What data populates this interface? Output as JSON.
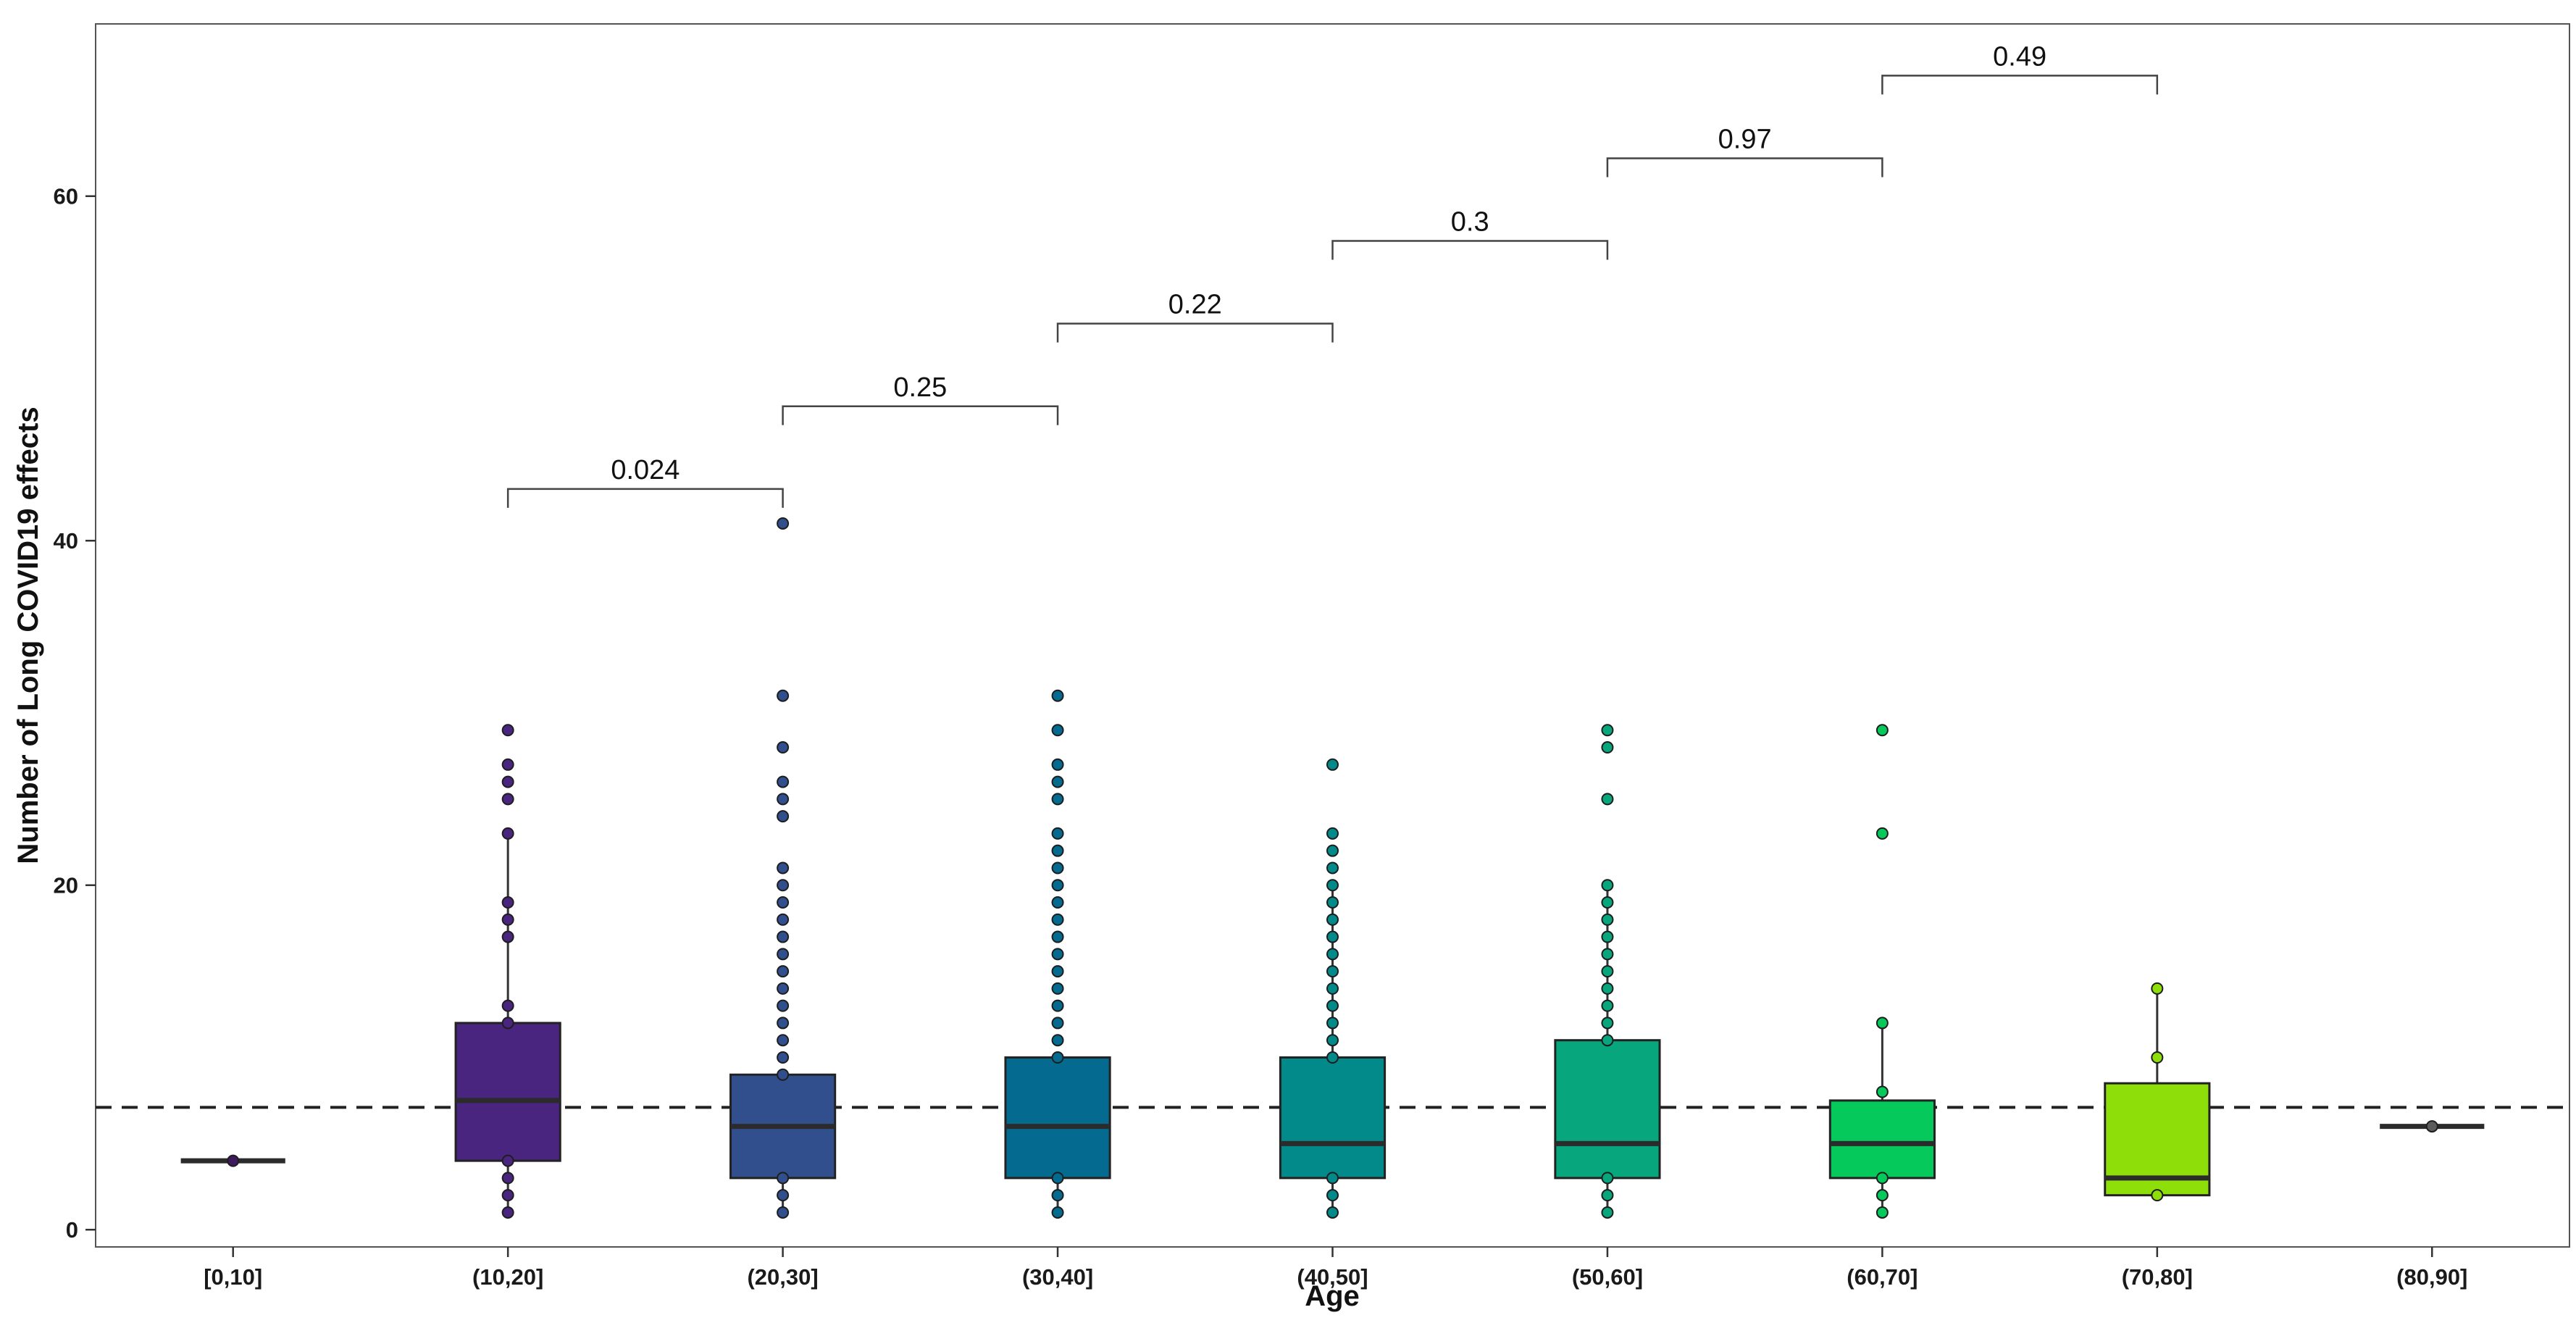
{
  "chart_data": {
    "type": "box",
    "xlabel": "Age",
    "ylabel": "Number of Long COVID19 effects",
    "ylim": [
      -1,
      70
    ],
    "yticks": [
      0,
      20,
      40,
      60
    ],
    "grid": false,
    "reference_line": {
      "y": 7.1,
      "style": "dashed"
    },
    "categories": [
      "[0,10]",
      "(10,20]",
      "(20,30]",
      "(30,40]",
      "(40,50]",
      "(50,60]",
      "(60,70]",
      "(70,80]",
      "(80,90]"
    ],
    "boxes": [
      {
        "category": "[0,10]",
        "color": "#3c1a5c",
        "q1": 4,
        "median": 4,
        "q3": 4,
        "whisker_low": 4,
        "whisker_high": 4,
        "points": [
          4
        ]
      },
      {
        "category": "(10,20]",
        "color": "#4a2580",
        "q1": 4,
        "median": 7.5,
        "q3": 12,
        "whisker_low": 1,
        "whisker_high": 23,
        "points": [
          1,
          2,
          3,
          4,
          12,
          13,
          17,
          18,
          19,
          23,
          25,
          26,
          27,
          29
        ]
      },
      {
        "category": "(20,30]",
        "color": "#314f8c",
        "q1": 3,
        "median": 6,
        "q3": 9,
        "whisker_low": 1,
        "whisker_high": 9,
        "points": [
          1,
          2,
          3,
          9,
          10,
          11,
          12,
          13,
          14,
          15,
          16,
          17,
          18,
          19,
          20,
          21,
          24,
          25,
          26,
          28,
          31,
          41
        ]
      },
      {
        "category": "(30,40]",
        "color": "#046a8f",
        "q1": 3,
        "median": 6,
        "q3": 10,
        "whisker_low": 1,
        "whisker_high": 10,
        "points": [
          1,
          2,
          3,
          10,
          11,
          12,
          13,
          14,
          15,
          16,
          17,
          18,
          19,
          20,
          21,
          22,
          23,
          25,
          26,
          27,
          29,
          31
        ]
      },
      {
        "category": "(40,50]",
        "color": "#028a8a",
        "q1": 3,
        "median": 5,
        "q3": 10,
        "whisker_low": 1,
        "whisker_high": 20,
        "points": [
          1,
          2,
          3,
          10,
          11,
          12,
          13,
          14,
          15,
          16,
          17,
          18,
          19,
          20,
          21,
          22,
          23,
          27
        ]
      },
      {
        "category": "(50,60]",
        "color": "#07a67c",
        "q1": 3,
        "median": 5,
        "q3": 11,
        "whisker_low": 1,
        "whisker_high": 20,
        "points": [
          1,
          2,
          3,
          11,
          12,
          13,
          14,
          15,
          16,
          17,
          18,
          19,
          20,
          25,
          28,
          29
        ]
      },
      {
        "category": "(60,70]",
        "color": "#06c95c",
        "q1": 3,
        "median": 5,
        "q3": 7.5,
        "whisker_low": 1,
        "whisker_high": 12,
        "points": [
          1,
          2,
          3,
          8,
          12,
          23,
          29
        ]
      },
      {
        "category": "(70,80]",
        "color": "#8ede0a",
        "q1": 2,
        "median": 3,
        "q3": 8.5,
        "whisker_low": 2,
        "whisker_high": 14,
        "points": [
          2,
          10,
          14
        ]
      },
      {
        "category": "(80,90]",
        "color": "#5c5c5c",
        "q1": 6,
        "median": 6,
        "q3": 6,
        "whisker_low": 6,
        "whisker_high": 6,
        "points": [
          6
        ]
      }
    ],
    "comparisons": [
      {
        "groups": [
          "(10,20]",
          "(20,30]"
        ],
        "label": "0.024",
        "y": 43
      },
      {
        "groups": [
          "(20,30]",
          "(30,40]"
        ],
        "label": "0.25",
        "y": 47.8
      },
      {
        "groups": [
          "(30,40]",
          "(40,50]"
        ],
        "label": "0.22",
        "y": 52.6
      },
      {
        "groups": [
          "(40,50]",
          "(50,60]"
        ],
        "label": "0.3",
        "y": 57.4
      },
      {
        "groups": [
          "(50,60]",
          "(60,70]"
        ],
        "label": "0.97",
        "y": 62.2
      },
      {
        "groups": [
          "(60,70]",
          "(70,80]"
        ],
        "label": "0.49",
        "y": 67
      }
    ]
  }
}
